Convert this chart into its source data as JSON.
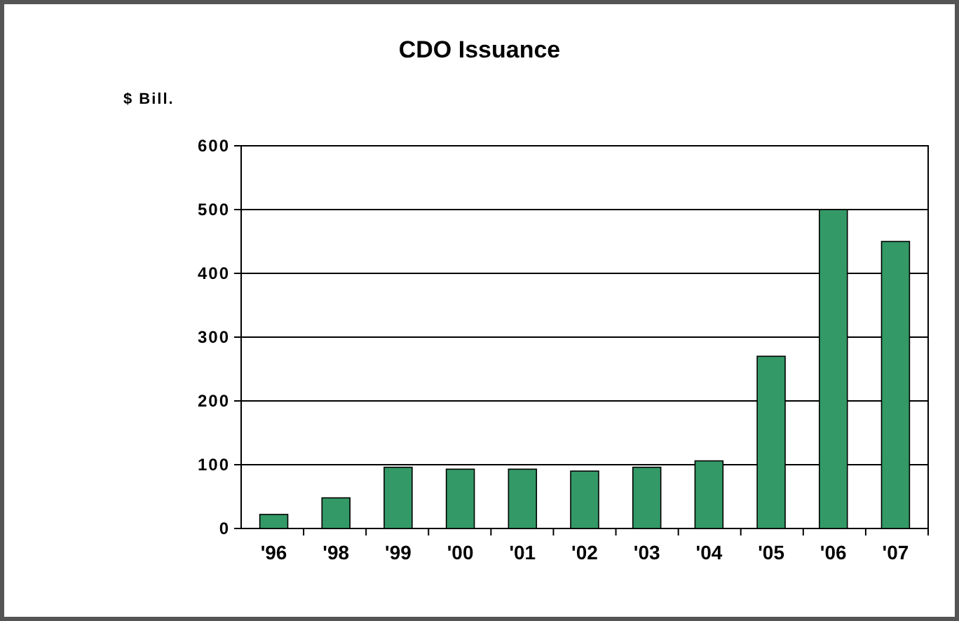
{
  "chart_data": {
    "type": "bar",
    "title": "CDO Issuance",
    "ylabel": "$ Bill.",
    "categories": [
      "'96",
      "'98",
      "'99",
      "'00",
      "'01",
      "'02",
      "'03",
      "'04",
      "'05",
      "'06",
      "'07"
    ],
    "values": [
      22,
      48,
      96,
      93,
      93,
      90,
      96,
      106,
      270,
      500,
      450
    ],
    "color": "#339966",
    "ylim": [
      0,
      600
    ],
    "yticks": [
      0,
      100,
      200,
      300,
      400,
      500,
      600
    ],
    "grid": "y"
  }
}
